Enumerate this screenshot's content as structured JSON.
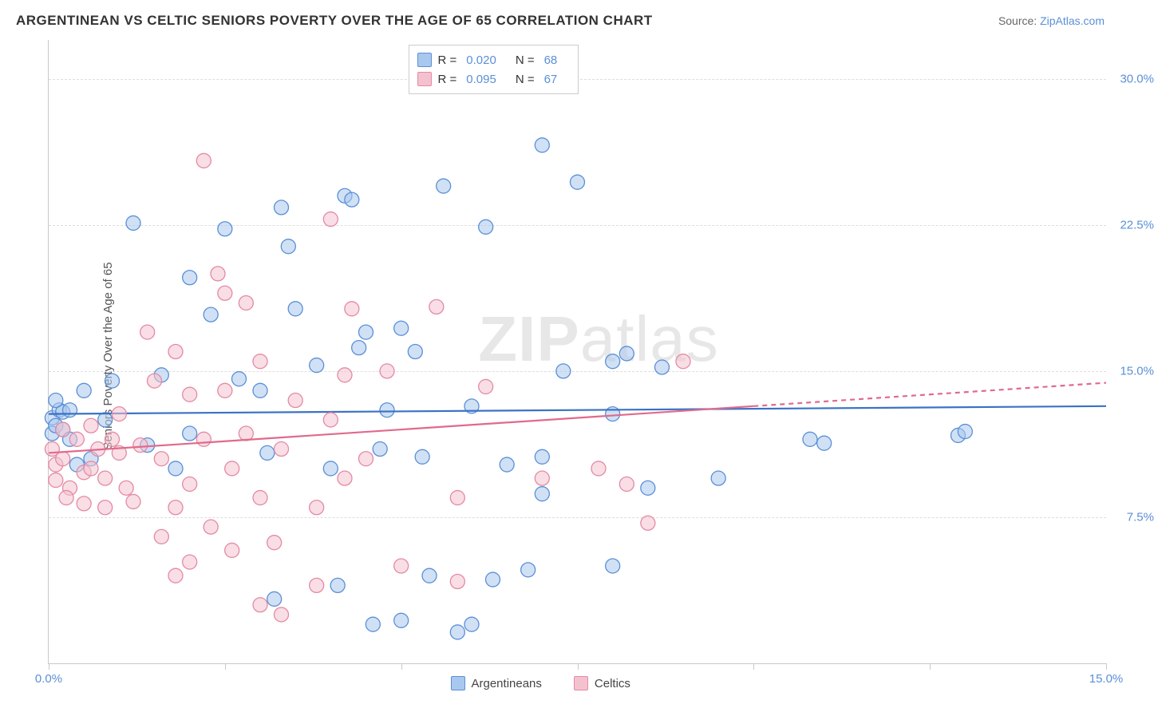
{
  "title": "ARGENTINEAN VS CELTIC SENIORS POVERTY OVER THE AGE OF 65 CORRELATION CHART",
  "source_prefix": "Source: ",
  "source_name": "ZipAtlas.com",
  "y_axis_label": "Seniors Poverty Over the Age of 65",
  "watermark_bold": "ZIP",
  "watermark_thin": "atlas",
  "legend_top": {
    "rows": [
      {
        "swatch_fill": "#a9c8ef",
        "swatch_stroke": "#5b8fd6",
        "r_label": "R =",
        "r_value": "0.020",
        "n_label": "N =",
        "n_value": "68"
      },
      {
        "swatch_fill": "#f4c2cf",
        "swatch_stroke": "#e48aa3",
        "r_label": "R =",
        "r_value": "0.095",
        "n_label": "N =",
        "n_value": "67"
      }
    ]
  },
  "legend_bottom": {
    "items": [
      {
        "swatch_fill": "#a9c8ef",
        "swatch_stroke": "#5b8fd6",
        "label": "Argentineans"
      },
      {
        "swatch_fill": "#f4c2cf",
        "swatch_stroke": "#e48aa3",
        "label": "Celtics"
      }
    ]
  },
  "chart": {
    "type": "scatter",
    "xlim": [
      0,
      15
    ],
    "ylim": [
      0,
      32
    ],
    "x_ticks": [
      0,
      2.5,
      5,
      7.5,
      10,
      12.5,
      15
    ],
    "x_tick_labels": {
      "0": "0.0%",
      "15": "15.0%"
    },
    "y_gridlines": [
      7.5,
      15.0,
      22.5,
      30.0
    ],
    "y_tick_labels": [
      "7.5%",
      "15.0%",
      "22.5%",
      "30.0%"
    ],
    "series": [
      {
        "name": "Argentineans",
        "point_fill": "#a9c8ef",
        "point_stroke": "#5b8fd6",
        "point_fill_opacity": 0.55,
        "point_radius": 9,
        "trend": {
          "stroke": "#3a72c4",
          "width": 2.2,
          "y_start": 12.8,
          "y_end": 13.2,
          "solid_to_x": 15,
          "dashed": false
        },
        "points": [
          [
            0.05,
            12.6
          ],
          [
            0.05,
            11.8
          ],
          [
            0.1,
            12.2
          ],
          [
            0.15,
            13.0
          ],
          [
            0.2,
            12.9
          ],
          [
            0.1,
            13.5
          ],
          [
            0.2,
            12.0
          ],
          [
            0.3,
            11.5
          ],
          [
            0.8,
            12.5
          ],
          [
            0.5,
            14.0
          ],
          [
            0.6,
            10.5
          ],
          [
            0.9,
            14.5
          ],
          [
            1.2,
            22.6
          ],
          [
            1.4,
            11.2
          ],
          [
            1.6,
            14.8
          ],
          [
            1.8,
            10.0
          ],
          [
            2.5,
            22.3
          ],
          [
            2.7,
            14.6
          ],
          [
            2.0,
            11.8
          ],
          [
            2.3,
            17.9
          ],
          [
            3.3,
            23.4
          ],
          [
            3.4,
            21.4
          ],
          [
            3.5,
            18.2
          ],
          [
            3.0,
            14.0
          ],
          [
            3.1,
            10.8
          ],
          [
            4.2,
            24.0
          ],
          [
            4.3,
            23.8
          ],
          [
            4.5,
            17.0
          ],
          [
            4.0,
            10.0
          ],
          [
            4.1,
            4.0
          ],
          [
            4.6,
            2.0
          ],
          [
            5.0,
            17.2
          ],
          [
            5.2,
            16.0
          ],
          [
            5.4,
            4.5
          ],
          [
            5.0,
            2.2
          ],
          [
            5.3,
            10.6
          ],
          [
            4.8,
            13.0
          ],
          [
            5.6,
            24.5
          ],
          [
            6.0,
            13.2
          ],
          [
            6.2,
            22.4
          ],
          [
            6.0,
            2.0
          ],
          [
            6.3,
            4.3
          ],
          [
            5.8,
            1.6
          ],
          [
            6.5,
            10.2
          ],
          [
            7.0,
            26.6
          ],
          [
            7.0,
            10.6
          ],
          [
            6.8,
            4.8
          ],
          [
            7.5,
            24.7
          ],
          [
            7.3,
            15.0
          ],
          [
            7.0,
            8.7
          ],
          [
            8.5,
            9.0
          ],
          [
            8.0,
            15.5
          ],
          [
            8.2,
            15.9
          ],
          [
            8.7,
            15.2
          ],
          [
            8.0,
            5.0
          ],
          [
            8.0,
            12.8
          ],
          [
            9.5,
            9.5
          ],
          [
            11.0,
            11.3
          ],
          [
            10.8,
            11.5
          ],
          [
            12.9,
            11.7
          ],
          [
            13.0,
            11.9
          ],
          [
            2.0,
            19.8
          ],
          [
            3.8,
            15.3
          ],
          [
            4.4,
            16.2
          ],
          [
            3.2,
            3.3
          ],
          [
            4.7,
            11.0
          ],
          [
            0.4,
            10.2
          ],
          [
            0.3,
            13.0
          ]
        ]
      },
      {
        "name": "Celtics",
        "point_fill": "#f4c2cf",
        "point_stroke": "#e48aa3",
        "point_fill_opacity": 0.55,
        "point_radius": 9,
        "trend": {
          "stroke": "#e06a8c",
          "width": 2.2,
          "y_start": 10.8,
          "y_end": 14.4,
          "solid_to_x": 10,
          "dashed": true
        },
        "points": [
          [
            0.05,
            11.0
          ],
          [
            0.1,
            10.2
          ],
          [
            0.1,
            9.4
          ],
          [
            0.2,
            12.0
          ],
          [
            0.2,
            10.5
          ],
          [
            0.3,
            9.0
          ],
          [
            0.25,
            8.5
          ],
          [
            0.4,
            11.5
          ],
          [
            0.5,
            9.8
          ],
          [
            0.5,
            8.2
          ],
          [
            0.6,
            12.2
          ],
          [
            0.6,
            10.0
          ],
          [
            0.7,
            11.0
          ],
          [
            0.8,
            9.5
          ],
          [
            0.8,
            8.0
          ],
          [
            0.9,
            11.5
          ],
          [
            1.0,
            10.8
          ],
          [
            1.0,
            12.8
          ],
          [
            1.1,
            9.0
          ],
          [
            1.2,
            8.3
          ],
          [
            1.3,
            11.2
          ],
          [
            1.4,
            17.0
          ],
          [
            1.5,
            14.5
          ],
          [
            1.6,
            10.5
          ],
          [
            1.6,
            6.5
          ],
          [
            1.8,
            16.0
          ],
          [
            1.8,
            8.0
          ],
          [
            1.8,
            4.5
          ],
          [
            2.0,
            13.8
          ],
          [
            2.0,
            9.2
          ],
          [
            2.0,
            5.2
          ],
          [
            2.2,
            11.5
          ],
          [
            2.2,
            25.8
          ],
          [
            2.3,
            7.0
          ],
          [
            2.4,
            20.0
          ],
          [
            2.5,
            19.0
          ],
          [
            2.5,
            14.0
          ],
          [
            2.6,
            10.0
          ],
          [
            2.6,
            5.8
          ],
          [
            2.8,
            18.5
          ],
          [
            2.8,
            11.8
          ],
          [
            3.0,
            8.5
          ],
          [
            3.0,
            15.5
          ],
          [
            3.0,
            3.0
          ],
          [
            3.2,
            6.2
          ],
          [
            3.3,
            11.0
          ],
          [
            3.3,
            2.5
          ],
          [
            3.5,
            13.5
          ],
          [
            3.8,
            8.0
          ],
          [
            3.8,
            4.0
          ],
          [
            4.0,
            22.8
          ],
          [
            4.0,
            12.5
          ],
          [
            4.2,
            9.5
          ],
          [
            4.2,
            14.8
          ],
          [
            4.3,
            18.2
          ],
          [
            4.5,
            10.5
          ],
          [
            4.8,
            15.0
          ],
          [
            5.0,
            5.0
          ],
          [
            5.5,
            18.3
          ],
          [
            5.8,
            8.5
          ],
          [
            5.8,
            4.2
          ],
          [
            6.2,
            14.2
          ],
          [
            7.0,
            9.5
          ],
          [
            7.8,
            10.0
          ],
          [
            8.2,
            9.2
          ],
          [
            8.5,
            7.2
          ],
          [
            9.0,
            15.5
          ]
        ]
      }
    ]
  }
}
